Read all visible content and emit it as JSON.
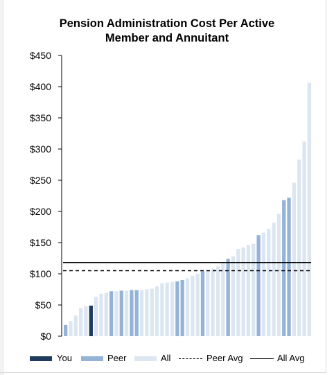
{
  "chart_data": {
    "type": "bar",
    "title": [
      "Pension Administration Cost Per Active",
      "Member and Annuitant"
    ],
    "ylim": [
      0,
      450
    ],
    "yticks": [
      0,
      50,
      100,
      150,
      200,
      250,
      300,
      350,
      400,
      450
    ],
    "ytick_labels": [
      "$0",
      "$50",
      "$100",
      "$150",
      "$200",
      "$250",
      "$300",
      "$350",
      "$400",
      "$450"
    ],
    "grid": false,
    "legend_position": "bottom",
    "colors": {
      "you": "#1f3b5e",
      "peer": "#95b3d7",
      "all": "#dce6f1",
      "line": "#000000"
    },
    "series_labels": {
      "you": "You",
      "peer": "Peer",
      "all": "All",
      "peer_avg": "Peer Avg",
      "all_avg": "All Avg"
    },
    "peer_avg": 105,
    "all_avg": 118,
    "bars": [
      {
        "value": 18,
        "group": "peer"
      },
      {
        "value": 24,
        "group": "all"
      },
      {
        "value": 33,
        "group": "all"
      },
      {
        "value": 45,
        "group": "all"
      },
      {
        "value": 48,
        "group": "all"
      },
      {
        "value": 49,
        "group": "you"
      },
      {
        "value": 63,
        "group": "all"
      },
      {
        "value": 68,
        "group": "all"
      },
      {
        "value": 70,
        "group": "all"
      },
      {
        "value": 72,
        "group": "peer"
      },
      {
        "value": 72,
        "group": "all"
      },
      {
        "value": 73,
        "group": "peer"
      },
      {
        "value": 73,
        "group": "all"
      },
      {
        "value": 74,
        "group": "peer"
      },
      {
        "value": 74,
        "group": "peer"
      },
      {
        "value": 74,
        "group": "all"
      },
      {
        "value": 75,
        "group": "all"
      },
      {
        "value": 76,
        "group": "all"
      },
      {
        "value": 80,
        "group": "all"
      },
      {
        "value": 85,
        "group": "all"
      },
      {
        "value": 86,
        "group": "all"
      },
      {
        "value": 87,
        "group": "all"
      },
      {
        "value": 88,
        "group": "peer"
      },
      {
        "value": 90,
        "group": "peer"
      },
      {
        "value": 93,
        "group": "all"
      },
      {
        "value": 97,
        "group": "all"
      },
      {
        "value": 100,
        "group": "all"
      },
      {
        "value": 104,
        "group": "peer"
      },
      {
        "value": 106,
        "group": "all"
      },
      {
        "value": 108,
        "group": "all"
      },
      {
        "value": 112,
        "group": "all"
      },
      {
        "value": 118,
        "group": "all"
      },
      {
        "value": 124,
        "group": "peer"
      },
      {
        "value": 128,
        "group": "all"
      },
      {
        "value": 140,
        "group": "all"
      },
      {
        "value": 142,
        "group": "all"
      },
      {
        "value": 146,
        "group": "all"
      },
      {
        "value": 148,
        "group": "all"
      },
      {
        "value": 162,
        "group": "peer"
      },
      {
        "value": 166,
        "group": "all"
      },
      {
        "value": 172,
        "group": "all"
      },
      {
        "value": 182,
        "group": "all"
      },
      {
        "value": 196,
        "group": "all"
      },
      {
        "value": 218,
        "group": "peer"
      },
      {
        "value": 222,
        "group": "peer"
      },
      {
        "value": 246,
        "group": "all"
      },
      {
        "value": 283,
        "group": "all"
      },
      {
        "value": 312,
        "group": "all"
      },
      {
        "value": 406,
        "group": "all"
      }
    ]
  }
}
